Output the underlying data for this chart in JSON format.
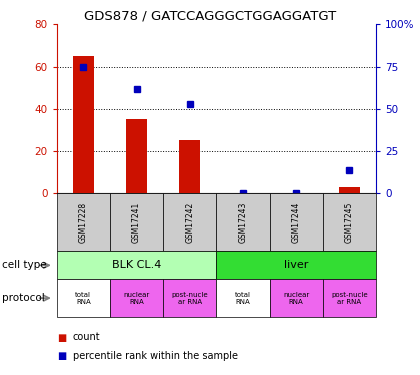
{
  "title": "GDS878 / GATCCAGGGCTGGAGGATGT",
  "samples": [
    "GSM17228",
    "GSM17241",
    "GSM17242",
    "GSM17243",
    "GSM17244",
    "GSM17245"
  ],
  "counts": [
    65,
    35,
    25,
    0,
    0,
    3
  ],
  "percentiles": [
    75,
    62,
    53,
    0,
    0,
    14
  ],
  "left_ylim": [
    0,
    80
  ],
  "right_ylim": [
    0,
    100
  ],
  "left_yticks": [
    0,
    20,
    40,
    60,
    80
  ],
  "right_yticks": [
    0,
    25,
    50,
    75,
    100
  ],
  "right_yticklabels": [
    "0",
    "25",
    "50",
    "75",
    "100%"
  ],
  "cell_type_groups": [
    {
      "label": "BLK CL.4",
      "start": 0,
      "end": 2,
      "color": "#b3ffb3"
    },
    {
      "label": "liver",
      "start": 3,
      "end": 5,
      "color": "#33dd33"
    }
  ],
  "protocols": [
    "total\nRNA",
    "nuclear\nRNA",
    "post-nucle\nar RNA",
    "total\nRNA",
    "nuclear\nRNA",
    "post-nucle\nar RNA"
  ],
  "protocol_colors": [
    "#ffffff",
    "#ee66ee",
    "#ee66ee",
    "#ffffff",
    "#ee66ee",
    "#ee66ee"
  ],
  "bar_color": "#cc1100",
  "square_color": "#0000bb",
  "left_axis_color": "#cc1100",
  "right_axis_color": "#0000bb",
  "sample_box_color": "#cccccc",
  "grid_yticks": [
    20,
    40,
    60
  ]
}
